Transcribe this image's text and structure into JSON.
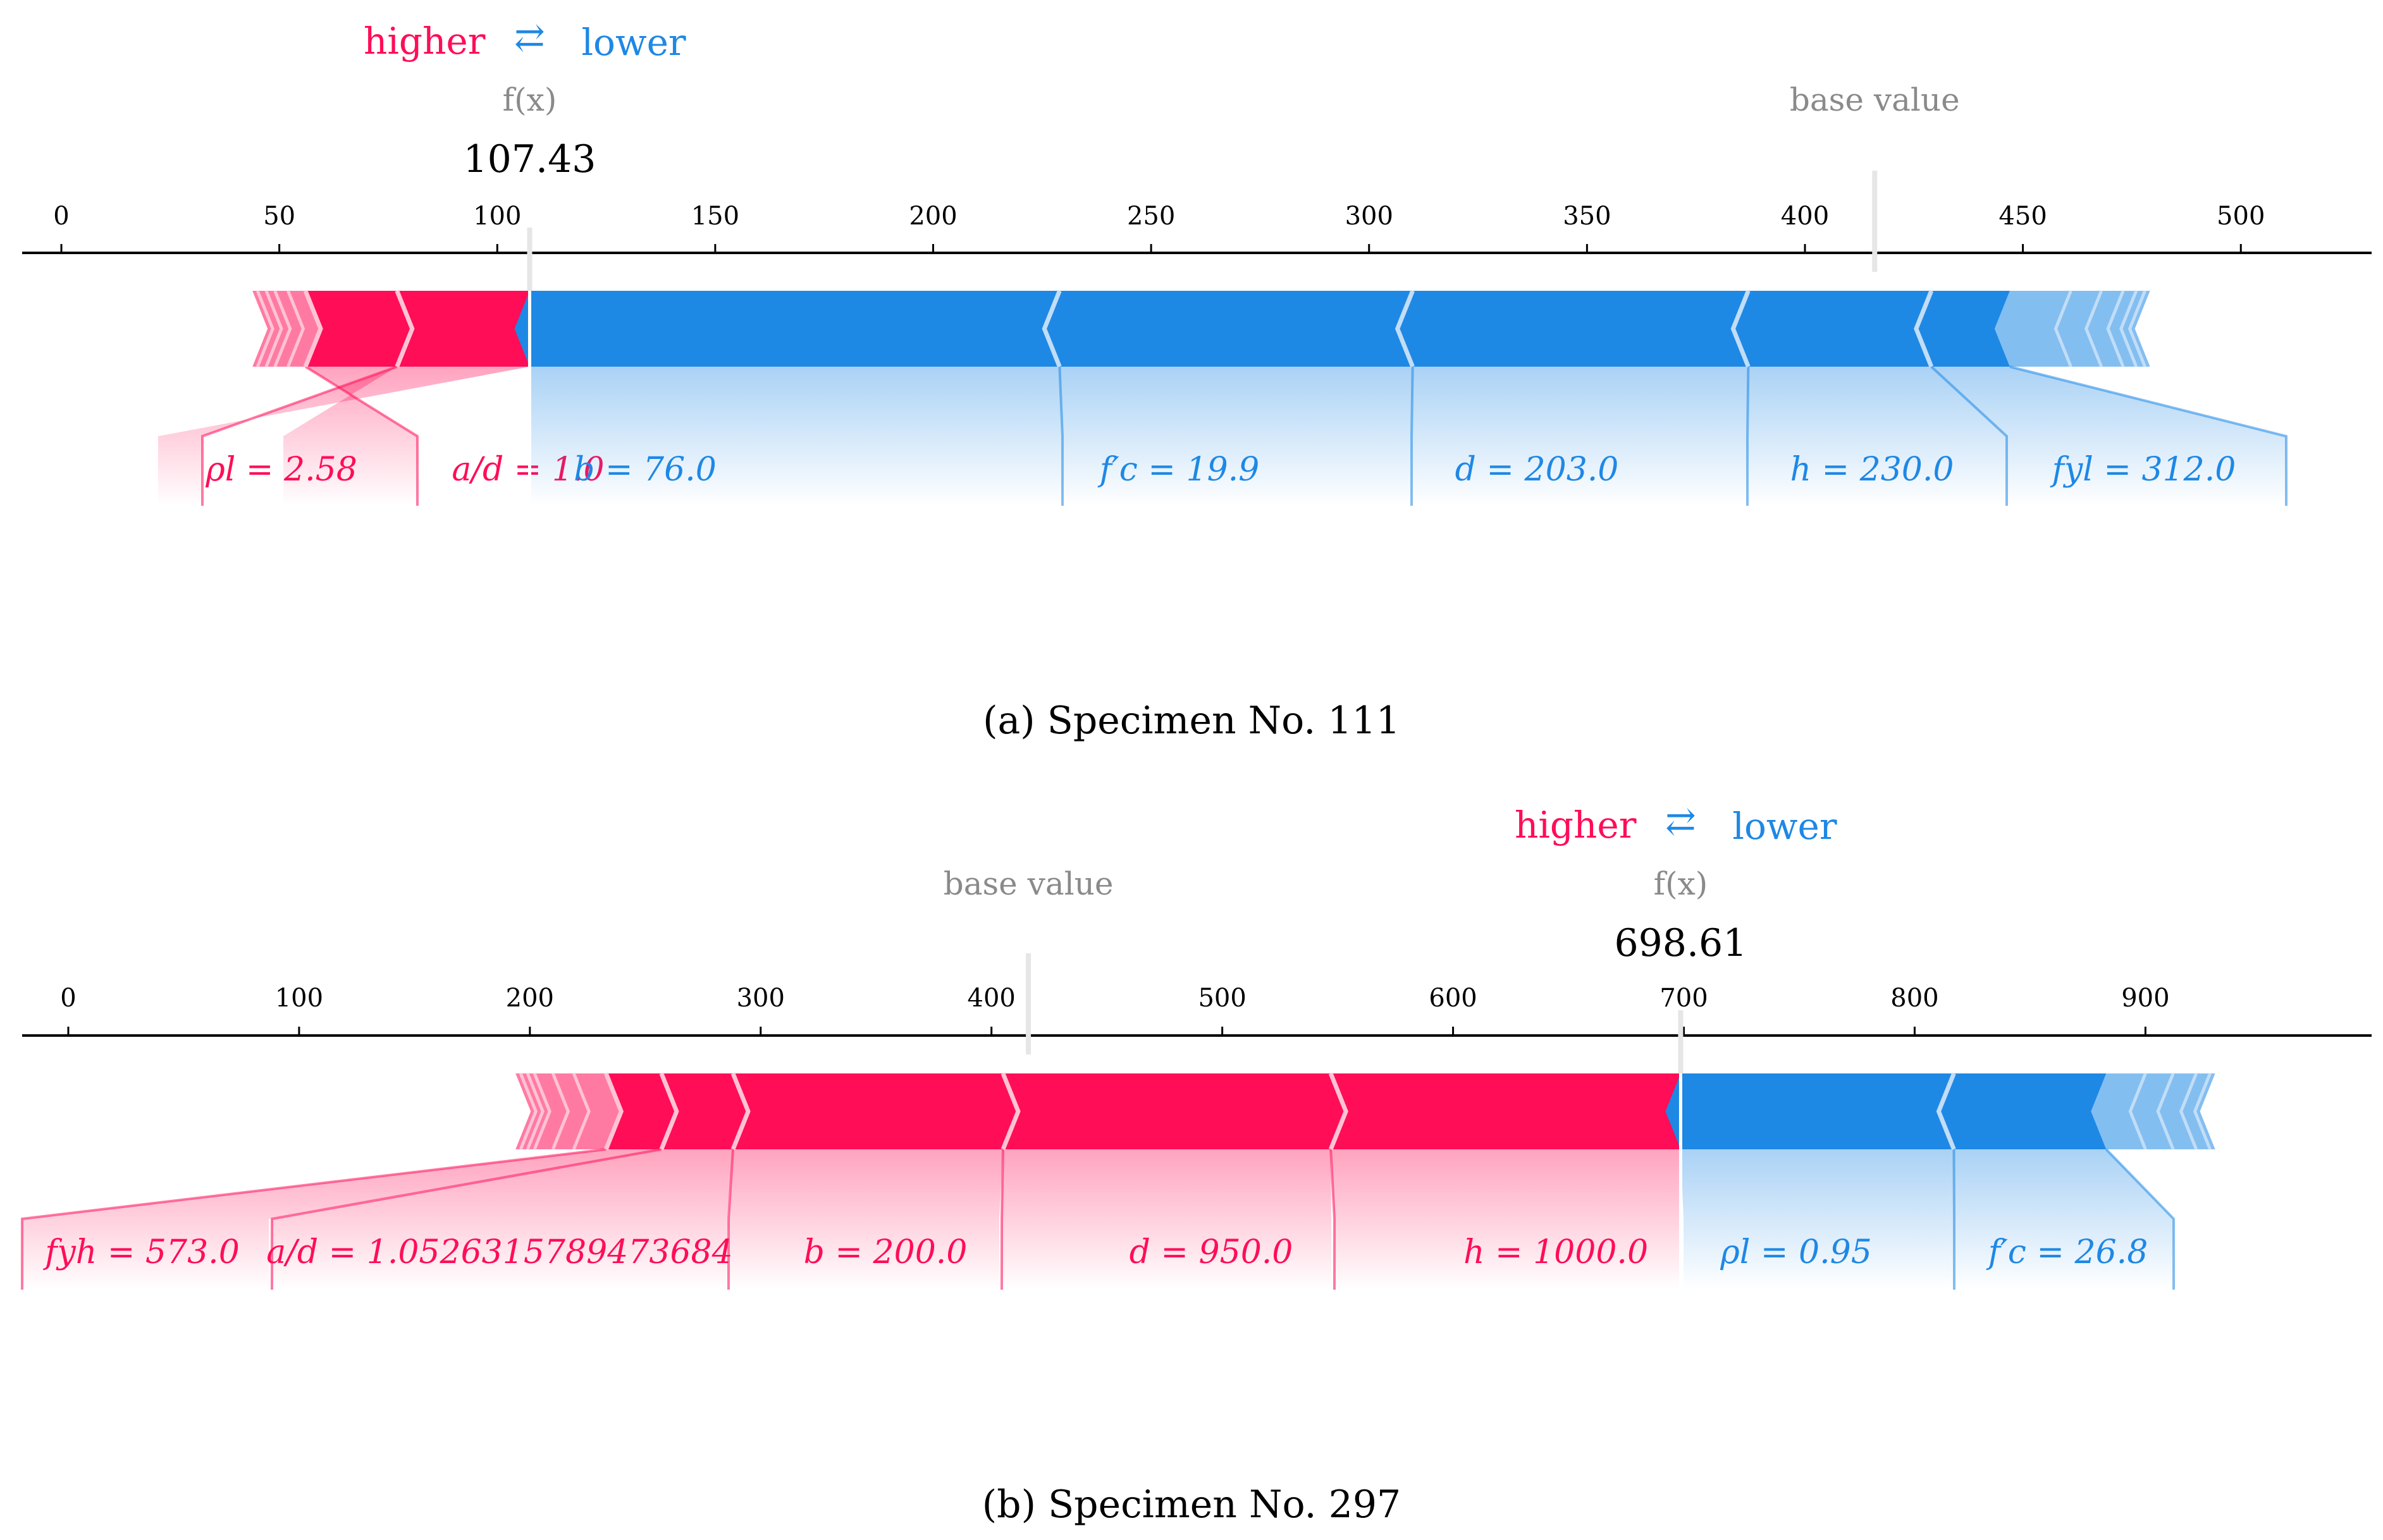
{
  "colors": {
    "higher": "#ff0d57",
    "lower": "#1e88e5",
    "gray": "#8a8a8a",
    "axis": "#000000"
  },
  "chart_data": [
    {
      "type": "force",
      "caption": "(a) Specimen No. 111",
      "legend": {
        "higher": "higher",
        "lower": "lower",
        "arrows": "⇄"
      },
      "fx_label": "f(x)",
      "fx_value_text": "107.43",
      "fx": 107.43,
      "base_label": "base value",
      "base_value": 416,
      "ticks": [
        0,
        50,
        100,
        150,
        200,
        250,
        300,
        350,
        400,
        450,
        500
      ],
      "tick_labels": [
        "0",
        "50",
        "100",
        "150",
        "200",
        "250",
        "300",
        "350",
        "400",
        "450",
        "500"
      ],
      "xlim": [
        -9,
        530
      ],
      "higher_features": [
        {
          "label": "ρl = 2.58",
          "start": 77,
          "end": 107.43
        },
        {
          "label": "a/d = 1.0",
          "start": 56,
          "end": 77
        }
      ],
      "higher_small_features": [
        52,
        49,
        47,
        45
      ],
      "lower_features": [
        {
          "label": "b = 76.0",
          "start": 107.43,
          "end": 229
        },
        {
          "label": "f′c = 19.9",
          "start": 229,
          "end": 310
        },
        {
          "label": "d = 203.0",
          "start": 310,
          "end": 387
        },
        {
          "label": "h = 230.0",
          "start": 387,
          "end": 429
        },
        {
          "label": "fyl = 312.0",
          "start": 429,
          "end": 447
        }
      ],
      "lower_small_features": [
        461,
        468,
        473,
        476,
        478
      ]
    },
    {
      "type": "force",
      "caption": "(b) Specimen No. 297",
      "legend": {
        "higher": "higher",
        "lower": "lower",
        "arrows": "⇄"
      },
      "fx_label": "f(x)",
      "fx_value_text": "698.61",
      "fx": 698.61,
      "base_label": "base value",
      "base_value": 416,
      "ticks": [
        0,
        100,
        200,
        300,
        400,
        500,
        600,
        700,
        800,
        900
      ],
      "tick_labels": [
        "0",
        "100",
        "200",
        "300",
        "400",
        "500",
        "600",
        "700",
        "800",
        "900"
      ],
      "xlim": [
        -20,
        998
      ],
      "higher_features": [
        {
          "label": "h = 1000.0",
          "start": 547,
          "end": 698.61
        },
        {
          "label": "d = 950.0",
          "start": 405,
          "end": 547
        },
        {
          "label": "b = 200.0",
          "start": 288,
          "end": 405
        },
        {
          "label": "a/d = 1.0526315789473684",
          "start": 257,
          "end": 288
        },
        {
          "label": "fyh = 573.0",
          "start": 233,
          "end": 257
        }
      ],
      "higher_small_features": [
        219,
        210,
        202,
        199,
        196
      ],
      "lower_features": [
        {
          "label": "ρl = 0.95",
          "start": 698.61,
          "end": 817
        },
        {
          "label": "f′c = 26.8",
          "start": 817,
          "end": 883
        }
      ],
      "lower_small_features": [
        900,
        912,
        922,
        928
      ]
    }
  ]
}
